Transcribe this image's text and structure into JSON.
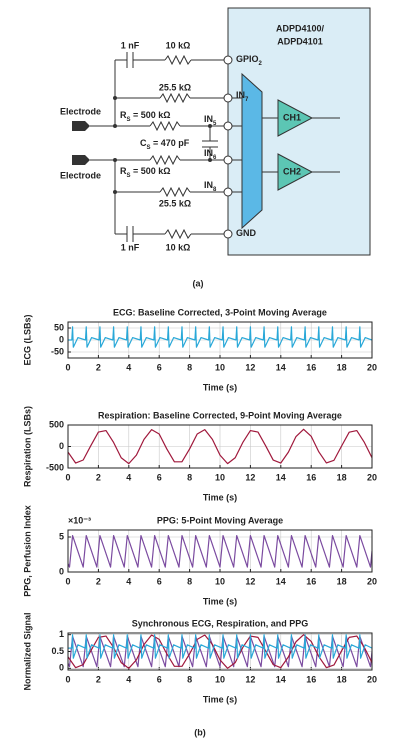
{
  "circuit": {
    "chip": [
      "ADPD4100/",
      "ADPD4101"
    ],
    "pins": [
      {
        "text": "GPIO",
        "sub": "2"
      },
      {
        "text": "IN",
        "sub": "7"
      },
      {
        "text": "IN",
        "sub": "5"
      },
      {
        "text": "IN",
        "sub": "6"
      },
      {
        "text": "IN",
        "sub": "8"
      },
      {
        "text": "GND",
        "sub": ""
      }
    ],
    "cap_top": "1 nF",
    "res_top": "10 kΩ",
    "res_in7": "25.5 kΩ",
    "rs1": {
      "text": "R",
      "sub": "S",
      "rest": " = 500 kΩ"
    },
    "cs": {
      "text": "C",
      "sub": "S",
      "rest": " = 470 pF"
    },
    "rs2": {
      "text": "R",
      "sub": "S",
      "rest": " = 500 kΩ"
    },
    "res_in8": "25.5 kΩ",
    "cap_bottom": "1 nF",
    "res_bottom": "10 kΩ",
    "electrodes": [
      "Electrode",
      "Electrode"
    ],
    "channels": [
      "CH1",
      "CH2"
    ],
    "caption": "(a)"
  },
  "caption_b": "(b)",
  "chart_data": [
    {
      "type": "line",
      "title": "ECG: Baseline Corrected, 3-Point Moving Average",
      "xlabel": "Time (s)",
      "ylabel": "ECG (LSBs)",
      "xlim": [
        0,
        20
      ],
      "xticks": [
        0,
        2,
        4,
        6,
        8,
        10,
        12,
        14,
        16,
        18,
        20
      ],
      "ylim": [
        -75,
        75
      ],
      "yticks": [
        -50,
        0,
        50
      ],
      "grid": true,
      "series": [
        {
          "color": "#29a8d8",
          "x": [
            0,
            0.25,
            0.3,
            0.35,
            0.65,
            1.15,
            1.2,
            1.25,
            1.55,
            2.05,
            2.1,
            2.15,
            2.45,
            2.95,
            3.0,
            3.05,
            3.35,
            3.85,
            3.9,
            3.95,
            4.25,
            4.75,
            4.8,
            4.85,
            5.15,
            5.65,
            5.7,
            5.75,
            6.05,
            6.55,
            6.6,
            6.65,
            6.95,
            7.45,
            7.5,
            7.55,
            7.85,
            8.35,
            8.4,
            8.45,
            8.75,
            9.25,
            9.3,
            9.35,
            9.65,
            10.15,
            10.2,
            10.25,
            10.55,
            11.05,
            11.1,
            11.15,
            11.45,
            11.95,
            12,
            12.05,
            12.35,
            12.85,
            12.9,
            12.95,
            13.25,
            13.75,
            13.8,
            13.85,
            14.15,
            14.65,
            14.7,
            14.75,
            15.05,
            15.55,
            15.6,
            15.65,
            15.95,
            16.45,
            16.5,
            16.55,
            16.85,
            17.35,
            17.4,
            17.45,
            17.75,
            18.25,
            18.3,
            18.35,
            18.65,
            19.15,
            19.2,
            19.25,
            19.55,
            20
          ],
          "values": [
            0,
            0,
            55,
            -30,
            10,
            0,
            55,
            -30,
            10,
            0,
            55,
            -30,
            10,
            0,
            55,
            -30,
            10,
            0,
            55,
            -30,
            10,
            0,
            55,
            -30,
            10,
            0,
            55,
            -30,
            10,
            0,
            55,
            -30,
            10,
            0,
            55,
            -30,
            10,
            0,
            55,
            -30,
            10,
            0,
            55,
            -30,
            10,
            0,
            55,
            -30,
            10,
            0,
            55,
            -30,
            10,
            0,
            55,
            -30,
            10,
            0,
            55,
            -30,
            10,
            0,
            55,
            -30,
            10,
            0,
            55,
            -30,
            10,
            0,
            55,
            -30,
            10,
            0,
            55,
            -30,
            10,
            0,
            55,
            -30,
            10,
            0,
            55,
            -30,
            10,
            0,
            55,
            -30,
            10,
            0
          ]
        }
      ]
    },
    {
      "type": "line",
      "title": "Respiration: Baseline Corrected, 9-Point Moving Average",
      "xlabel": "Time (s)",
      "ylabel": "Respiration (LSBs)",
      "xlim": [
        0,
        20
      ],
      "xticks": [
        0,
        2,
        4,
        6,
        8,
        10,
        12,
        14,
        16,
        18,
        20
      ],
      "ylim": [
        -500,
        500
      ],
      "yticks": [
        -500,
        0,
        500
      ],
      "grid": true,
      "series": [
        {
          "color": "#a0193c",
          "x": [
            0,
            0.5,
            1,
            1.5,
            2,
            2.5,
            3,
            3.5,
            4,
            4.5,
            5,
            5.5,
            6,
            6.5,
            7,
            7.5,
            8,
            8.5,
            9,
            9.5,
            10,
            10.5,
            11,
            11.5,
            12,
            12.5,
            13,
            13.5,
            14,
            14.5,
            15,
            15.5,
            16,
            16.5,
            17,
            17.5,
            18,
            18.5,
            19,
            19.5,
            20
          ],
          "values": [
            -131,
            -384,
            -314,
            19,
            336,
            371,
            94,
            -262,
            -398,
            -200,
            166,
            393,
            290,
            -57,
            -356,
            -354,
            -57,
            290,
            393,
            166,
            -200,
            -398,
            -261,
            94,
            371,
            336,
            19,
            -315,
            -384,
            -131,
            232,
            400,
            238,
            -124,
            -382,
            -320,
            12,
            332,
            371,
            94,
            -262
          ]
        }
      ]
    },
    {
      "type": "line",
      "title": "PPG: 5-Point Moving Average",
      "xlabel": "Time (s)",
      "ylabel": "PPG, Perfusion Index",
      "y_multiplier": "×10⁻³",
      "xlim": [
        0,
        20
      ],
      "xticks": [
        0,
        2,
        4,
        6,
        8,
        10,
        12,
        14,
        16,
        18,
        20
      ],
      "ylim": [
        0,
        6
      ],
      "yticks": [
        0,
        5
      ],
      "grid": true,
      "series": [
        {
          "color": "#7b4ba0",
          "x": [
            0,
            0.1,
            0.3,
            1.0,
            1.2,
            1.9,
            2.1,
            2.8,
            3.0,
            3.7,
            3.9,
            4.6,
            4.8,
            5.5,
            5.7,
            6.4,
            6.6,
            7.3,
            7.5,
            8.2,
            8.4,
            9.1,
            9.3,
            10.0,
            10.2,
            10.9,
            11.1,
            11.8,
            12.0,
            12.7,
            12.9,
            13.6,
            13.8,
            14.5,
            14.7,
            15.4,
            15.6,
            16.3,
            16.5,
            17.2,
            17.4,
            18.1,
            18.3,
            19.0,
            19.2,
            19.9,
            20
          ],
          "values": [
            1.2,
            0.7,
            5.2,
            0.7,
            5.2,
            0.7,
            5.2,
            0.7,
            5.2,
            0.7,
            5.2,
            0.7,
            5.2,
            0.7,
            5.2,
            0.7,
            5.2,
            0.7,
            5.2,
            0.7,
            5.2,
            0.7,
            5.2,
            0.7,
            5.2,
            0.7,
            5.2,
            0.7,
            5.2,
            0.7,
            5.2,
            0.7,
            5.2,
            0.7,
            5.2,
            0.7,
            5.2,
            0.7,
            5.2,
            0.7,
            5.2,
            0.7,
            5.2,
            0.7,
            5.2,
            0.7,
            3.0
          ]
        }
      ]
    },
    {
      "type": "line",
      "title": "Synchronous ECG, Respiration, and PPG",
      "xlabel": "Time (s)",
      "ylabel": "Normalized Signal",
      "xlim": [
        0,
        20
      ],
      "xticks": [
        0,
        2,
        4,
        6,
        8,
        10,
        12,
        14,
        16,
        18,
        20
      ],
      "ylim": [
        -0.05,
        1.05
      ],
      "yticks": [
        0,
        0.5,
        1
      ],
      "grid": true,
      "series": [
        {
          "color": "#7b4ba0",
          "x": [
            0,
            0.1,
            0.3,
            1.0,
            1.2,
            1.9,
            2.1,
            2.8,
            3.0,
            3.7,
            3.9,
            4.6,
            4.8,
            5.5,
            5.7,
            6.4,
            6.6,
            7.3,
            7.5,
            8.2,
            8.4,
            9.1,
            9.3,
            10.0,
            10.2,
            10.9,
            11.1,
            11.8,
            12.0,
            12.7,
            12.9,
            13.6,
            13.8,
            14.5,
            14.7,
            15.4,
            15.6,
            16.3,
            16.5,
            17.2,
            17.4,
            18.1,
            18.3,
            19.0,
            19.2,
            19.9,
            20
          ],
          "values": [
            0.15,
            0.05,
            0.95,
            0.05,
            0.95,
            0.05,
            0.95,
            0.05,
            0.95,
            0.05,
            0.95,
            0.05,
            0.95,
            0.05,
            0.95,
            0.05,
            0.95,
            0.05,
            0.95,
            0.05,
            0.95,
            0.05,
            0.95,
            0.05,
            0.95,
            0.05,
            0.95,
            0.05,
            0.95,
            0.05,
            0.95,
            0.05,
            0.95,
            0.05,
            0.95,
            0.05,
            0.95,
            0.05,
            0.95,
            0.05,
            0.95,
            0.05,
            0.95,
            0.05,
            0.95,
            0.05,
            0.5
          ]
        },
        {
          "color": "#a0193c",
          "x": [
            0,
            0.5,
            1,
            1.5,
            2,
            2.5,
            3,
            3.5,
            4,
            4.5,
            5,
            5.5,
            6,
            6.5,
            7,
            7.5,
            8,
            8.5,
            9,
            9.5,
            10,
            10.5,
            11,
            11.5,
            12,
            12.5,
            13,
            13.5,
            14,
            14.5,
            15,
            15.5,
            16,
            16.5,
            17,
            17.5,
            18,
            18.5,
            19,
            19.5,
            20
          ],
          "values": [
            0.34,
            0.02,
            0.11,
            0.52,
            0.92,
            0.96,
            0.62,
            0.17,
            0,
            0.25,
            0.71,
            0.99,
            0.86,
            0.43,
            0.06,
            0.06,
            0.43,
            0.86,
            0.99,
            0.71,
            0.25,
            0,
            0.17,
            0.62,
            0.96,
            0.92,
            0.52,
            0.11,
            0.02,
            0.34,
            0.79,
            1,
            0.8,
            0.35,
            0.02,
            0.1,
            0.52,
            0.92,
            0.96,
            0.62,
            0.17
          ]
        },
        {
          "color": "#29a8d8",
          "x": [
            0,
            0.25,
            0.3,
            0.35,
            0.65,
            1.15,
            1.2,
            1.25,
            1.55,
            2.05,
            2.1,
            2.15,
            2.45,
            2.95,
            3.0,
            3.05,
            3.35,
            3.85,
            3.9,
            3.95,
            4.25,
            4.75,
            4.8,
            4.85,
            5.15,
            5.65,
            5.7,
            5.75,
            6.05,
            6.55,
            6.6,
            6.65,
            6.95,
            7.45,
            7.5,
            7.55,
            7.85,
            8.35,
            8.4,
            8.45,
            8.75,
            9.25,
            9.3,
            9.35,
            9.65,
            10.15,
            10.2,
            10.25,
            10.55,
            11.05,
            11.1,
            11.15,
            11.45,
            11.95,
            12,
            12.05,
            12.35,
            12.85,
            12.9,
            12.95,
            13.25,
            13.75,
            13.8,
            13.85,
            14.15,
            14.65,
            14.7,
            14.75,
            15.05,
            15.55,
            15.6,
            15.65,
            15.95,
            16.45,
            16.5,
            16.55,
            16.85,
            17.35,
            17.4,
            17.45,
            17.75,
            18.25,
            18.3,
            18.35,
            18.65,
            19.15,
            19.2,
            19.25,
            19.55,
            20
          ],
          "values": [
            0.6,
            0.6,
            1,
            0.3,
            0.7,
            0.6,
            1,
            0.3,
            0.7,
            0.6,
            1,
            0.3,
            0.7,
            0.6,
            1,
            0.3,
            0.7,
            0.6,
            1,
            0.3,
            0.7,
            0.6,
            1,
            0.3,
            0.7,
            0.6,
            1,
            0.3,
            0.7,
            0.6,
            1,
            0.3,
            0.7,
            0.6,
            1,
            0.3,
            0.7,
            0.6,
            1,
            0.3,
            0.7,
            0.6,
            1,
            0.3,
            0.7,
            0.6,
            1,
            0.3,
            0.7,
            0.6,
            1,
            0.3,
            0.7,
            0.6,
            1,
            0.3,
            0.7,
            0.6,
            1,
            0.3,
            0.7,
            0.6,
            1,
            0.3,
            0.7,
            0.6,
            1,
            0.3,
            0.7,
            0.6,
            1,
            0.3,
            0.7,
            0.6,
            1,
            0.3,
            0.7,
            0.6,
            1,
            0.3,
            0.7,
            0.6,
            1,
            0.3,
            0.7,
            0.6,
            1,
            0.3,
            0.7,
            0.6
          ]
        }
      ]
    }
  ]
}
